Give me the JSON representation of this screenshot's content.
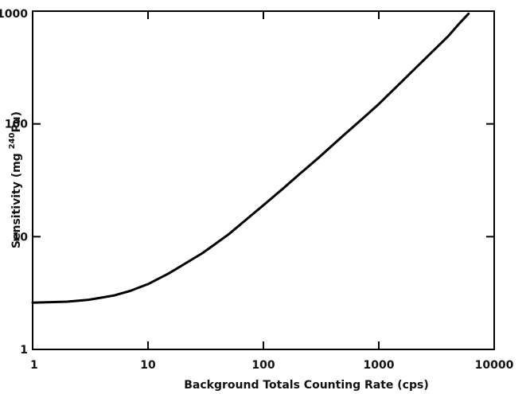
{
  "chart_data": {
    "type": "line",
    "title": "",
    "xlabel": "Background Totals Counting Rate (cps)",
    "ylabel": {
      "prefix": "Sensitivity (mg ",
      "superscript": "240",
      "suffix": "Pu)"
    },
    "xscale": "log",
    "yscale": "log",
    "xlim": [
      1,
      10000
    ],
    "ylim": [
      1,
      1000
    ],
    "xticks": [
      1,
      10,
      100,
      1000,
      10000
    ],
    "xtick_labels": [
      "1",
      "10",
      "100",
      "1000",
      "10000"
    ],
    "yticks": [
      1,
      10,
      100,
      1000
    ],
    "ytick_labels": [
      "1",
      "10",
      "100",
      "1000"
    ],
    "grid": false,
    "legend": "none",
    "line_color": "#000000",
    "series": [
      {
        "x": [
          1,
          2,
          3,
          5,
          7,
          10,
          15,
          20,
          30,
          50,
          70,
          100,
          150,
          200,
          300,
          500,
          700,
          1000,
          1500,
          2000,
          3000,
          4000,
          5000,
          6000
        ],
        "y": [
          2.6,
          2.65,
          2.75,
          3.0,
          3.3,
          3.8,
          4.7,
          5.6,
          7.2,
          10.5,
          14,
          19,
          27,
          35,
          50,
          80,
          108,
          150,
          225,
          300,
          450,
          600,
          780,
          950
        ]
      }
    ]
  }
}
